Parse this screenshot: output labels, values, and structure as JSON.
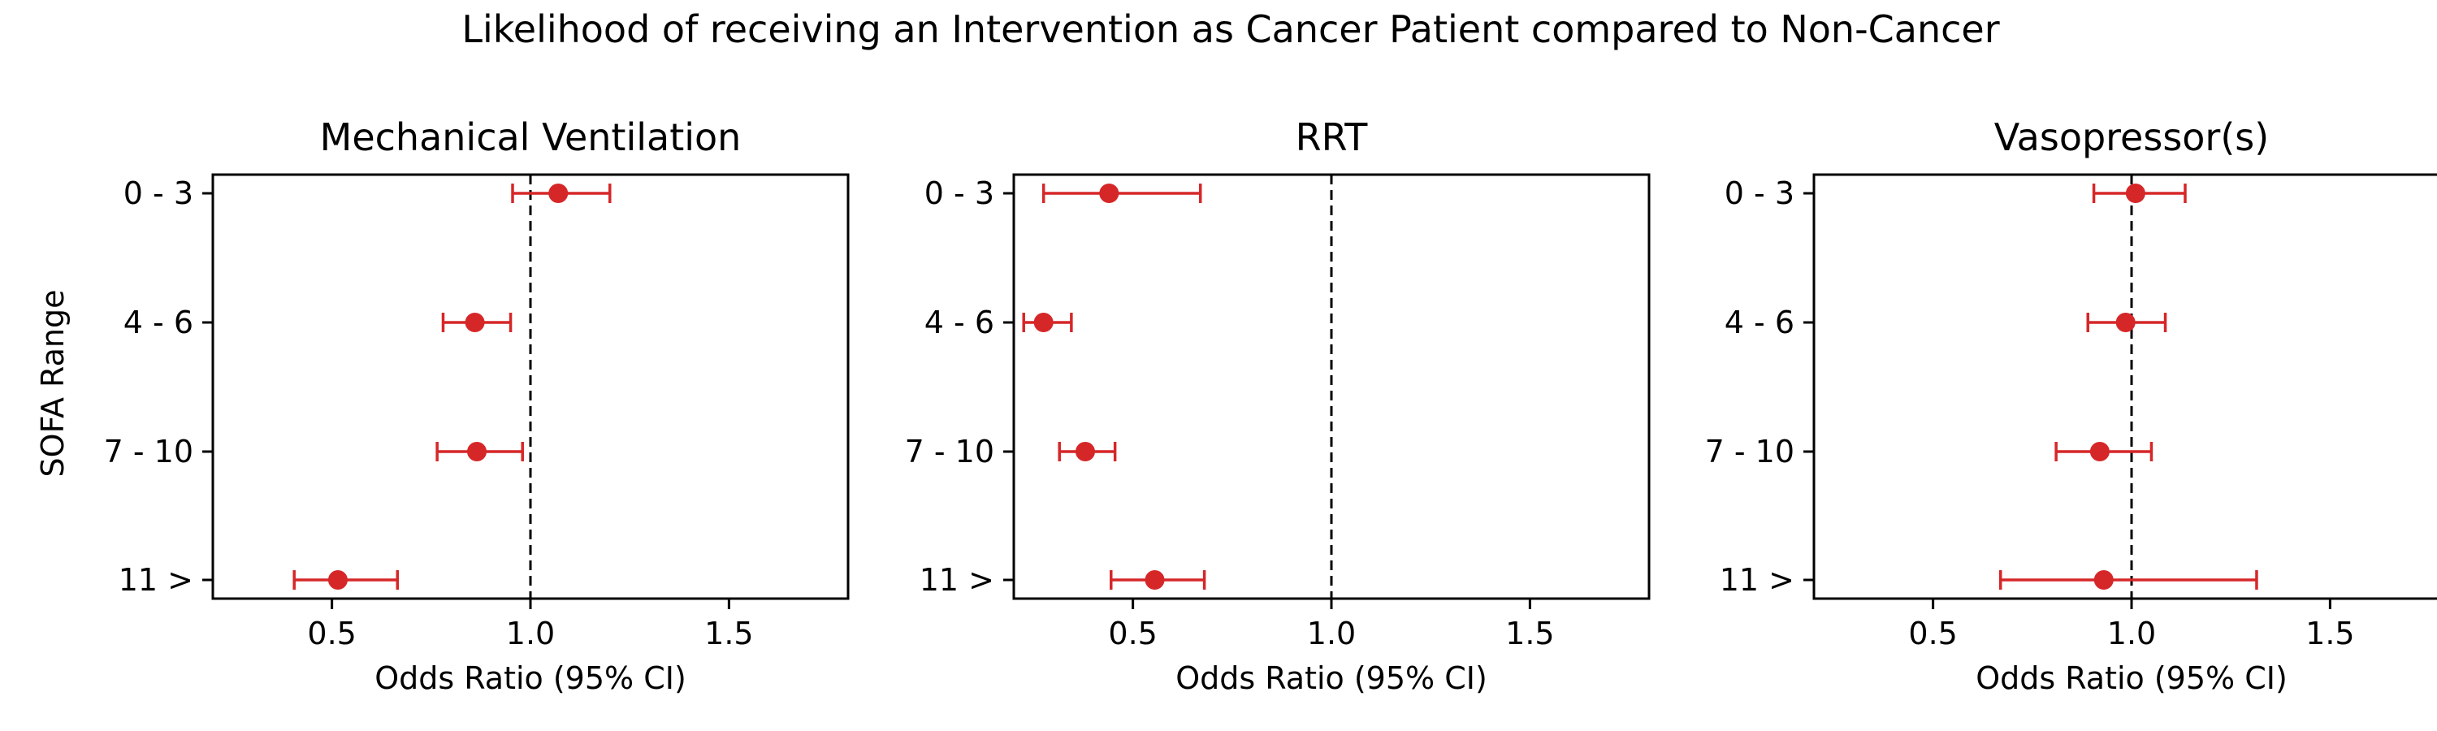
{
  "chart_data": {
    "type": "forest",
    "suptitle": "Likelihood of receiving an Intervention as Cancer Patient compared to Non-Cancer",
    "shared_y_label": "SOFA Range",
    "categories": [
      "0 - 3",
      "4 - 6",
      "7 - 10",
      "11 >"
    ],
    "xlim": [
      0.2,
      1.8
    ],
    "xticks": [
      0.5,
      1.0,
      1.5
    ],
    "xtick_labels": [
      "0.5",
      "1.0",
      "1.5"
    ],
    "reference_line": 1.0,
    "marker_color": "#d62728",
    "panels": [
      {
        "title": "Mechanical Ventilation",
        "xlabel": "Odds Ratio (95% CI)",
        "odds_ratio": [
          1.07,
          0.86,
          0.865,
          0.515
        ],
        "ci_low": [
          0.955,
          0.78,
          0.765,
          0.405
        ],
        "ci_high": [
          1.2,
          0.95,
          0.98,
          0.665
        ]
      },
      {
        "title": "RRT",
        "xlabel": "Odds Ratio (95% CI)",
        "odds_ratio": [
          0.44,
          0.275,
          0.38,
          0.555
        ],
        "ci_low": [
          0.275,
          0.225,
          0.315,
          0.445
        ],
        "ci_high": [
          0.67,
          0.345,
          0.455,
          0.68
        ]
      },
      {
        "title": "Vasopressor(s)",
        "xlabel": "Odds Ratio (95% CI)",
        "odds_ratio": [
          1.01,
          0.985,
          0.92,
          0.93
        ],
        "ci_low": [
          0.905,
          0.89,
          0.81,
          0.67
        ],
        "ci_high": [
          1.135,
          1.085,
          1.05,
          1.315
        ]
      }
    ]
  }
}
